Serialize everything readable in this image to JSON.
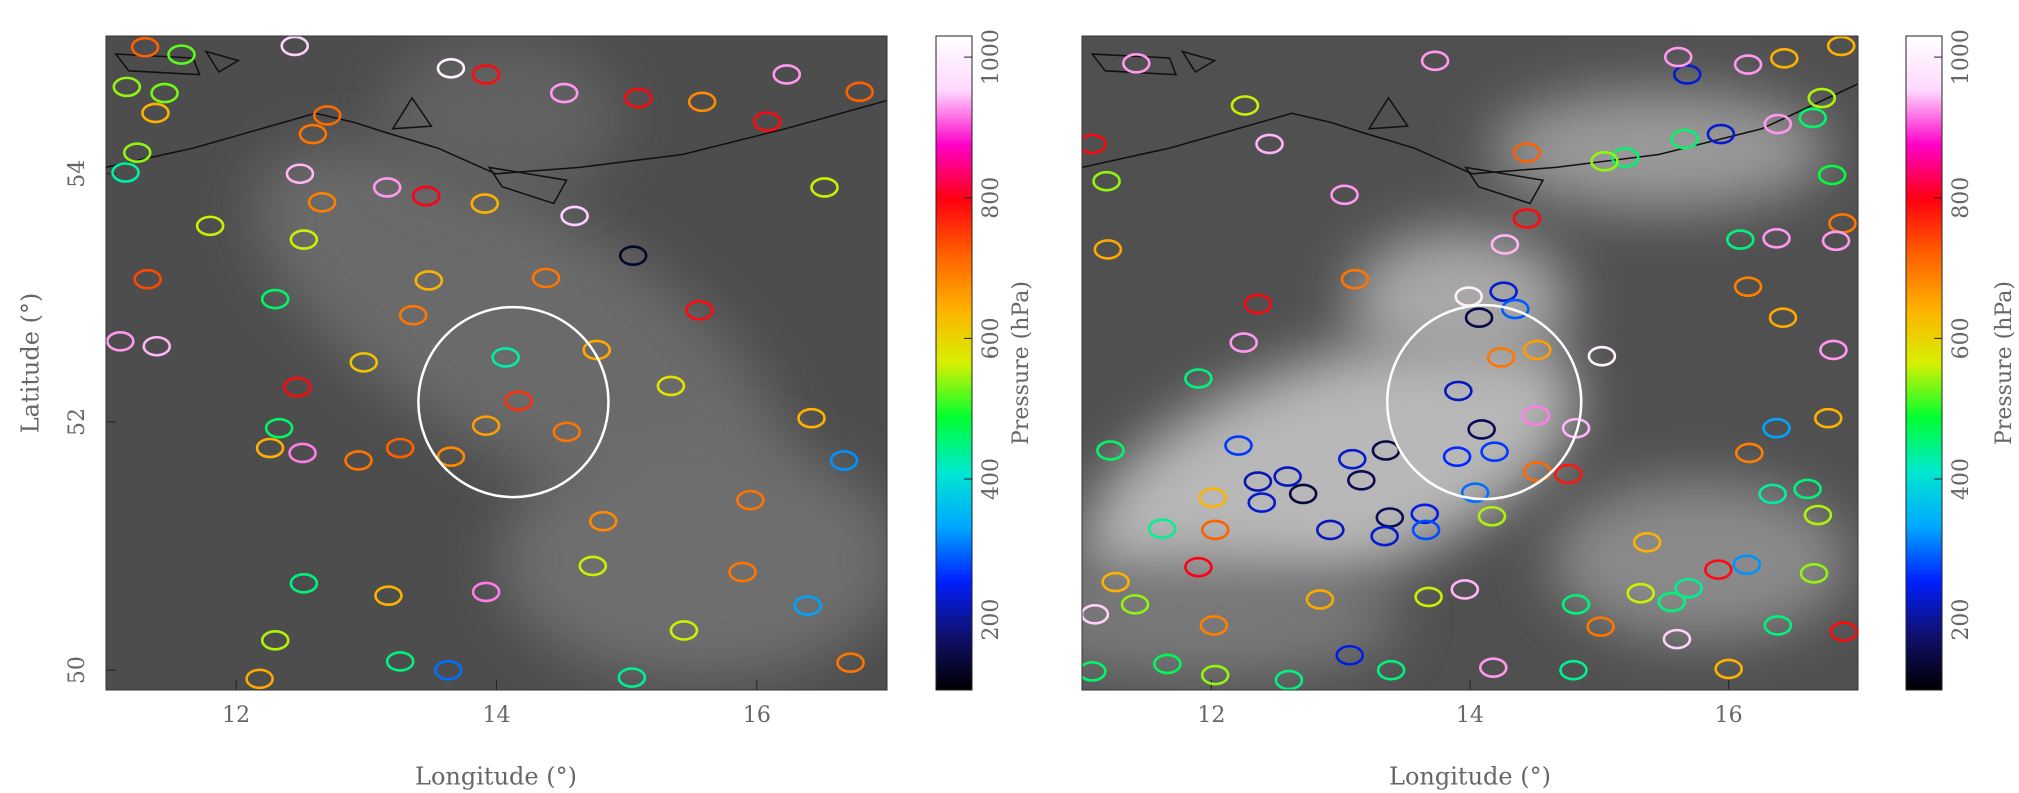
{
  "chart_data": [
    {
      "type": "scatter",
      "x_label": "Longitude (°)",
      "y_label": "Latitude (°)",
      "colorbar_label": "Pressure (hPa)",
      "xlim": [
        11,
        17
      ],
      "ylim": [
        49.84,
        55.11
      ],
      "xticks": [
        12,
        14,
        16
      ],
      "yticks": [
        50,
        52,
        54
      ],
      "clim": [
        100,
        1030
      ],
      "cticks": [
        200,
        400,
        600,
        800,
        1000
      ],
      "colors": [
        "#000000",
        "#10106e",
        "#0020ff",
        "#00a8ff",
        "#00e8d0",
        "#00ff30",
        "#d8f000",
        "#ffb000",
        "#ff6000",
        "#ff0010",
        "#ff00c8",
        "#ffd8ff",
        "#ffffff"
      ],
      "highlight": {
        "x": 14.13,
        "y": 52.16,
        "r": 0.73
      },
      "x": [
        11.3,
        11.58,
        12.45,
        13.65,
        13.92,
        11.16,
        11.45,
        11.38,
        12.7,
        12.59,
        11.24,
        11.15,
        12.49,
        12.66,
        11.8,
        11.32,
        11.11,
        11.39,
        12.3,
        12.52,
        13.16,
        13.46,
        13.91,
        14.6,
        15.05,
        14.38,
        14.07,
        14.77,
        12.47,
        12.33,
        12.26,
        12.51,
        12.94,
        13.26,
        13.92,
        14.17,
        14.54,
        13.65,
        14.82,
        12.52,
        13.17,
        13.92,
        14.52,
        15.09,
        15.58,
        16.08,
        16.23,
        16.79,
        16.52,
        15.56,
        16.42,
        16.67,
        15.95,
        16.39,
        13.63,
        13.26,
        15.04,
        12.18,
        12.3,
        16.72,
        13.36,
        13.48,
        12.98,
        15.34,
        15.89,
        15.44,
        14.74
      ],
      "y": [
        55.02,
        54.96,
        55.03,
        54.85,
        54.8,
        54.7,
        54.65,
        54.49,
        54.47,
        54.32,
        54.17,
        54.01,
        54.0,
        53.77,
        53.58,
        53.15,
        52.65,
        52.61,
        52.99,
        53.47,
        53.89,
        53.82,
        53.76,
        53.66,
        53.34,
        53.16,
        52.52,
        52.58,
        52.28,
        51.95,
        51.79,
        51.75,
        51.69,
        51.79,
        51.97,
        52.17,
        51.92,
        51.72,
        51.2,
        50.7,
        50.6,
        50.63,
        54.65,
        54.61,
        54.58,
        54.42,
        54.8,
        54.66,
        53.89,
        52.9,
        52.03,
        51.69,
        51.37,
        50.52,
        50.0,
        50.07,
        49.94,
        49.93,
        50.24,
        50.06,
        52.86,
        53.14,
        52.48,
        52.29,
        50.79,
        50.32,
        50.84
      ],
      "values": [
        720,
        520,
        950,
        1000,
        790,
        540,
        530,
        640,
        710,
        700,
        540,
        430,
        940,
        690,
        560,
        740,
        930,
        940,
        460,
        560,
        930,
        800,
        640,
        950,
        130,
        700,
        430,
        650,
        790,
        460,
        640,
        920,
        700,
        720,
        660,
        760,
        700,
        680,
        680,
        450,
        640,
        920,
        930,
        790,
        680,
        790,
        930,
        720,
        560,
        790,
        640,
        320,
        700,
        330,
        300,
        450,
        440,
        650,
        550,
        700,
        700,
        640,
        620,
        580,
        700,
        560,
        560
      ]
    },
    {
      "type": "scatter",
      "x_label": "Longitude (°)",
      "colorbar_label": "Pressure (hPa)",
      "xlim": [
        11,
        17
      ],
      "ylim": [
        49.84,
        55.11
      ],
      "xticks": [
        12,
        14,
        16
      ],
      "clim": [
        100,
        1030
      ],
      "cticks": [
        200,
        400,
        600,
        800,
        1000
      ],
      "colors": [
        "#000000",
        "#10106e",
        "#0020ff",
        "#00a8ff",
        "#00e8d0",
        "#00ff30",
        "#d8f000",
        "#ffb000",
        "#ff6000",
        "#ff0010",
        "#ff00c8",
        "#ffd8ff",
        "#ffffff"
      ],
      "highlight": {
        "x": 14.11,
        "y": 52.16,
        "r": 0.75
      },
      "x": [
        11.08,
        11.42,
        12.26,
        12.45,
        13.73,
        13.03,
        11.19,
        11.2,
        12.36,
        13.11,
        12.25,
        11.9,
        12.21,
        12.01,
        12.03,
        11.9,
        11.22,
        11.62,
        13.99,
        14.26,
        14.07,
        14.35,
        13.91,
        14.09,
        14.19,
        13.9,
        13.35,
        13.09,
        13.16,
        12.59,
        12.36,
        12.71,
        12.39,
        12.92,
        13.38,
        13.65,
        13.34,
        13.66,
        14.04,
        14.17,
        14.24,
        14.52,
        14.51,
        14.82,
        15.02,
        14.52,
        14.76,
        14.27,
        14.44,
        14.44,
        15.2,
        15.04,
        15.66,
        15.94,
        15.68,
        15.61,
        16.15,
        16.43,
        16.87,
        16.72,
        16.38,
        16.65,
        16.8,
        16.88,
        16.83,
        16.37,
        16.09,
        16.15,
        16.42,
        16.81,
        16.77,
        16.37,
        16.16,
        16.34,
        16.61,
        16.69,
        16.66,
        16.14,
        15.92,
        15.69,
        15.6,
        16.0,
        16.38,
        16.89,
        14.8,
        14.18,
        13.39,
        13.07,
        12.6,
        12.03,
        12.02,
        11.66,
        11.08,
        11.1,
        11.41,
        11.26,
        12.84,
        13.96,
        13.68,
        15.01,
        14.82,
        15.32,
        15.56,
        15.37
      ],
      "y": [
        54.24,
        54.89,
        54.55,
        54.24,
        54.91,
        53.83,
        53.94,
        53.39,
        52.95,
        53.15,
        52.64,
        52.35,
        51.81,
        51.39,
        51.13,
        50.83,
        51.77,
        51.14,
        53.01,
        53.05,
        52.84,
        52.91,
        52.25,
        51.94,
        51.76,
        51.72,
        51.77,
        51.7,
        51.53,
        51.56,
        51.52,
        51.42,
        51.35,
        51.13,
        51.23,
        51.26,
        51.08,
        51.13,
        51.43,
        51.24,
        52.52,
        52.58,
        52.05,
        51.95,
        52.53,
        51.6,
        51.58,
        53.43,
        53.64,
        54.17,
        54.13,
        54.1,
        54.28,
        54.32,
        54.8,
        54.94,
        54.88,
        54.93,
        55.03,
        54.61,
        54.4,
        54.45,
        53.99,
        53.6,
        53.46,
        53.48,
        53.47,
        53.09,
        52.84,
        52.58,
        52.03,
        51.95,
        51.75,
        51.42,
        51.46,
        51.25,
        50.78,
        50.85,
        50.81,
        50.66,
        50.25,
        50.01,
        50.36,
        50.31,
        50.0,
        50.02,
        50.0,
        50.12,
        49.92,
        49.96,
        50.36,
        50.05,
        49.99,
        50.45,
        50.53,
        50.71,
        50.57,
        50.65,
        50.59,
        50.35,
        50.53,
        50.62,
        50.55,
        51.03
      ],
      "values": [
        790,
        930,
        560,
        940,
        930,
        930,
        540,
        650,
        790,
        700,
        930,
        450,
        270,
        640,
        720,
        800,
        460,
        440,
        1000,
        230,
        150,
        290,
        220,
        160,
        270,
        260,
        150,
        230,
        160,
        220,
        210,
        140,
        230,
        220,
        160,
        240,
        230,
        280,
        300,
        550,
        700,
        660,
        920,
        940,
        1000,
        710,
        780,
        940,
        790,
        720,
        460,
        540,
        460,
        230,
        230,
        930,
        930,
        640,
        640,
        550,
        930,
        460,
        480,
        700,
        930,
        930,
        450,
        690,
        650,
        930,
        640,
        330,
        690,
        430,
        450,
        550,
        540,
        320,
        790,
        440,
        950,
        640,
        450,
        790,
        440,
        930,
        450,
        240,
        450,
        540,
        690,
        470,
        460,
        950,
        540,
        640,
        650,
        940,
        560,
        700,
        450,
        560,
        450,
        640
      ]
    }
  ]
}
